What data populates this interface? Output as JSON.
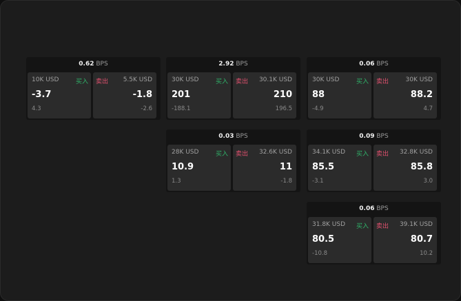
{
  "unit": "BPS",
  "buy_label": "买入",
  "sell_label": "卖出",
  "colors": {
    "buy": "#2fb36a",
    "sell": "#e0506e"
  },
  "cards": [
    {
      "spread": "0.62",
      "buy": {
        "amount": "10K USD",
        "price": "-3.7",
        "change": "4.3"
      },
      "sell": {
        "amount": "5.5K USD",
        "price": "-1.8",
        "change": "-2.6"
      }
    },
    {
      "spread": "2.92",
      "buy": {
        "amount": "30K USD",
        "price": "201",
        "change": "-188.1"
      },
      "sell": {
        "amount": "30.1K USD",
        "price": "210",
        "change": "196.5"
      }
    },
    {
      "spread": "0.06",
      "buy": {
        "amount": "30K USD",
        "price": "88",
        "change": "-4.9"
      },
      "sell": {
        "amount": "30K USD",
        "price": "88.2",
        "change": "4.7"
      }
    },
    {
      "spread": "0.03",
      "buy": {
        "amount": "28K USD",
        "price": "10.9",
        "change": "1.3"
      },
      "sell": {
        "amount": "32.6K USD",
        "price": "11",
        "change": "-1.8"
      }
    },
    {
      "spread": "0.09",
      "buy": {
        "amount": "34.1K USD",
        "price": "85.5",
        "change": "-3.1"
      },
      "sell": {
        "amount": "32.8K USD",
        "price": "85.8",
        "change": "3.0"
      }
    },
    {
      "spread": "0.06",
      "buy": {
        "amount": "31.8K USD",
        "price": "80.5",
        "change": "-10.8"
      },
      "sell": {
        "amount": "39.1K USD",
        "price": "80.7",
        "change": "10.2"
      }
    }
  ]
}
